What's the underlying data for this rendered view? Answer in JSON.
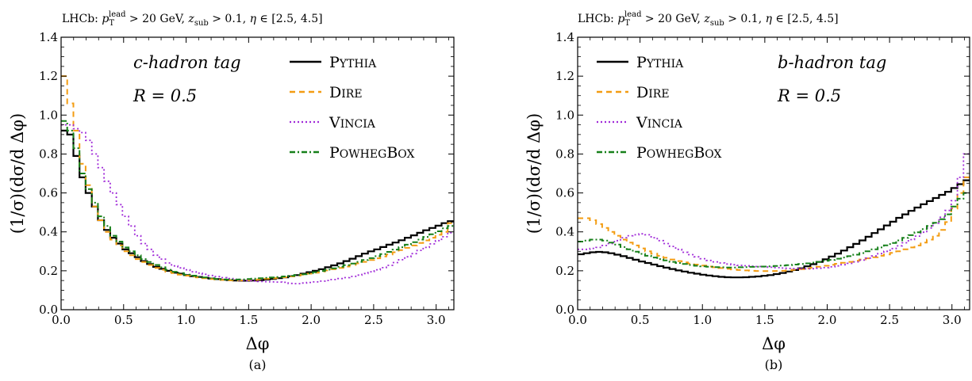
{
  "chart_data": [
    {
      "type": "line",
      "top_label": "LHCb: p_T^lead > 20 GeV, z_sub > 0.1, η ∈ [2.5, 4.5]",
      "tag_label": "c-hadron tag",
      "radius_label": "R = 0.5",
      "caption": "(a)",
      "xlabel": "Δφ",
      "ylabel": "(1/σ)(dσ/d Δφ)",
      "xlim": [
        0,
        3.1416
      ],
      "ylim": [
        0,
        1.4
      ],
      "xticks": [
        "0.0",
        "0.5",
        "1.0",
        "1.5",
        "2.0",
        "2.5",
        "3.0"
      ],
      "yticks": [
        "0.0",
        "0.2",
        "0.4",
        "0.6",
        "0.8",
        "1.0",
        "1.2",
        "1.4"
      ],
      "legend_position": "top-right",
      "series": [
        {
          "name": "Pythia",
          "color": "#000000",
          "dash": "",
          "width": 2.2,
          "values": [
            0.92,
            0.9,
            0.79,
            0.68,
            0.6,
            0.53,
            0.46,
            0.41,
            0.37,
            0.34,
            0.31,
            0.29,
            0.27,
            0.25,
            0.235,
            0.22,
            0.21,
            0.2,
            0.19,
            0.185,
            0.178,
            0.172,
            0.168,
            0.164,
            0.16,
            0.157,
            0.154,
            0.152,
            0.15,
            0.149,
            0.149,
            0.15,
            0.152,
            0.155,
            0.158,
            0.162,
            0.166,
            0.172,
            0.178,
            0.185,
            0.193,
            0.2,
            0.208,
            0.218,
            0.228,
            0.238,
            0.25,
            0.262,
            0.275,
            0.288,
            0.3,
            0.31,
            0.322,
            0.334,
            0.345,
            0.357,
            0.37,
            0.382,
            0.395,
            0.408,
            0.42,
            0.432,
            0.445,
            0.455
          ]
        },
        {
          "name": "Dire",
          "color": "#f39c12",
          "dash": "7,5",
          "width": 2,
          "values": [
            1.2,
            1.06,
            0.92,
            0.75,
            0.64,
            0.53,
            0.46,
            0.4,
            0.36,
            0.33,
            0.3,
            0.28,
            0.26,
            0.245,
            0.23,
            0.215,
            0.205,
            0.195,
            0.188,
            0.18,
            0.175,
            0.17,
            0.166,
            0.162,
            0.158,
            0.155,
            0.153,
            0.151,
            0.15,
            0.15,
            0.151,
            0.153,
            0.156,
            0.159,
            0.161,
            0.164,
            0.167,
            0.171,
            0.175,
            0.18,
            0.185,
            0.19,
            0.196,
            0.202,
            0.208,
            0.215,
            0.222,
            0.23,
            0.238,
            0.246,
            0.255,
            0.264,
            0.274,
            0.284,
            0.295,
            0.306,
            0.318,
            0.33,
            0.343,
            0.356,
            0.37,
            0.385,
            0.4,
            0.445
          ]
        },
        {
          "name": "Vincia",
          "color": "#a02bd8",
          "dash": "2,3",
          "width": 1.8,
          "values": [
            0.95,
            0.95,
            0.93,
            0.91,
            0.87,
            0.8,
            0.73,
            0.66,
            0.6,
            0.54,
            0.48,
            0.43,
            0.38,
            0.34,
            0.31,
            0.28,
            0.26,
            0.24,
            0.225,
            0.215,
            0.205,
            0.195,
            0.188,
            0.182,
            0.176,
            0.17,
            0.165,
            0.16,
            0.156,
            0.152,
            0.149,
            0.147,
            0.145,
            0.144,
            0.143,
            0.142,
            0.141,
            0.135,
            0.134,
            0.137,
            0.14,
            0.143,
            0.147,
            0.15,
            0.155,
            0.16,
            0.165,
            0.171,
            0.178,
            0.186,
            0.195,
            0.205,
            0.216,
            0.228,
            0.242,
            0.257,
            0.272,
            0.288,
            0.305,
            0.32,
            0.338,
            0.355,
            0.375,
            0.395
          ]
        },
        {
          "name": "PowhegBox",
          "color": "#17801a",
          "dash": "7,3,2,3",
          "width": 2,
          "values": [
            0.97,
            0.92,
            0.83,
            0.7,
            0.62,
            0.55,
            0.48,
            0.43,
            0.38,
            0.35,
            0.32,
            0.3,
            0.28,
            0.26,
            0.245,
            0.23,
            0.218,
            0.205,
            0.195,
            0.188,
            0.18,
            0.175,
            0.17,
            0.166,
            0.162,
            0.158,
            0.156,
            0.155,
            0.155,
            0.156,
            0.158,
            0.16,
            0.162,
            0.164,
            0.166,
            0.168,
            0.171,
            0.174,
            0.178,
            0.182,
            0.187,
            0.193,
            0.199,
            0.206,
            0.213,
            0.221,
            0.229,
            0.237,
            0.246,
            0.255,
            0.265,
            0.275,
            0.286,
            0.297,
            0.309,
            0.321,
            0.334,
            0.347,
            0.36,
            0.374,
            0.388,
            0.403,
            0.418,
            0.43
          ]
        }
      ]
    },
    {
      "type": "line",
      "top_label": "LHCb: p_T^lead > 20 GeV, z_sub > 0.1, η ∈ [2.5, 4.5]",
      "tag_label": "b-hadron tag",
      "radius_label": "R = 0.5",
      "caption": "(b)",
      "xlabel": "Δφ",
      "ylabel": "(1/σ)(dσ/d Δφ)",
      "xlim": [
        0,
        3.1416
      ],
      "ylim": [
        0,
        1.4
      ],
      "xticks": [
        "0.0",
        "0.5",
        "1.0",
        "1.5",
        "2.0",
        "2.5",
        "3.0"
      ],
      "yticks": [
        "0.0",
        "0.2",
        "0.4",
        "0.6",
        "0.8",
        "1.0",
        "1.2",
        "1.4"
      ],
      "legend_position": "top-left",
      "series": [
        {
          "name": "Pythia",
          "color": "#000000",
          "dash": "",
          "width": 2.2,
          "values": [
            0.285,
            0.29,
            0.295,
            0.297,
            0.295,
            0.29,
            0.283,
            0.275,
            0.266,
            0.257,
            0.248,
            0.24,
            0.232,
            0.224,
            0.216,
            0.209,
            0.202,
            0.196,
            0.19,
            0.185,
            0.18,
            0.176,
            0.172,
            0.169,
            0.167,
            0.166,
            0.166,
            0.167,
            0.169,
            0.171,
            0.174,
            0.178,
            0.183,
            0.189,
            0.196,
            0.204,
            0.213,
            0.223,
            0.234,
            0.246,
            0.259,
            0.273,
            0.288,
            0.304,
            0.321,
            0.338,
            0.356,
            0.375,
            0.394,
            0.413,
            0.433,
            0.452,
            0.472,
            0.49,
            0.508,
            0.525,
            0.542,
            0.558,
            0.574,
            0.59,
            0.606,
            0.625,
            0.645,
            0.665
          ]
        },
        {
          "name": "Dire",
          "color": "#f39c12",
          "dash": "7,5",
          "width": 2,
          "values": [
            0.47,
            0.47,
            0.46,
            0.44,
            0.42,
            0.4,
            0.38,
            0.36,
            0.345,
            0.33,
            0.315,
            0.3,
            0.288,
            0.277,
            0.267,
            0.258,
            0.25,
            0.243,
            0.237,
            0.232,
            0.227,
            0.222,
            0.218,
            0.214,
            0.21,
            0.207,
            0.204,
            0.202,
            0.2,
            0.199,
            0.198,
            0.198,
            0.199,
            0.2,
            0.202,
            0.205,
            0.208,
            0.212,
            0.216,
            0.221,
            0.226,
            0.231,
            0.236,
            0.241,
            0.246,
            0.252,
            0.258,
            0.264,
            0.27,
            0.277,
            0.284,
            0.292,
            0.3,
            0.31,
            0.32,
            0.33,
            0.345,
            0.36,
            0.38,
            0.41,
            0.45,
            0.52,
            0.6,
            0.68
          ]
        },
        {
          "name": "Vincia",
          "color": "#a02bd8",
          "dash": "2,3",
          "width": 1.8,
          "values": [
            0.31,
            0.31,
            0.315,
            0.32,
            0.33,
            0.34,
            0.355,
            0.37,
            0.38,
            0.385,
            0.39,
            0.385,
            0.37,
            0.355,
            0.34,
            0.325,
            0.31,
            0.295,
            0.283,
            0.272,
            0.262,
            0.253,
            0.246,
            0.24,
            0.235,
            0.231,
            0.228,
            0.226,
            0.224,
            0.222,
            0.22,
            0.218,
            0.216,
            0.214,
            0.212,
            0.211,
            0.21,
            0.21,
            0.211,
            0.213,
            0.216,
            0.22,
            0.225,
            0.231,
            0.238,
            0.246,
            0.255,
            0.265,
            0.276,
            0.288,
            0.3,
            0.314,
            0.328,
            0.344,
            0.36,
            0.378,
            0.398,
            0.42,
            0.445,
            0.475,
            0.51,
            0.56,
            0.68,
            0.8
          ]
        },
        {
          "name": "PowhegBox",
          "color": "#17801a",
          "dash": "7,3,2,3",
          "width": 2,
          "values": [
            0.35,
            0.355,
            0.36,
            0.36,
            0.355,
            0.345,
            0.335,
            0.322,
            0.31,
            0.298,
            0.287,
            0.277,
            0.268,
            0.26,
            0.253,
            0.246,
            0.24,
            0.235,
            0.23,
            0.226,
            0.223,
            0.221,
            0.219,
            0.218,
            0.217,
            0.217,
            0.218,
            0.219,
            0.22,
            0.221,
            0.222,
            0.223,
            0.225,
            0.227,
            0.229,
            0.232,
            0.235,
            0.238,
            0.242,
            0.246,
            0.251,
            0.256,
            0.262,
            0.268,
            0.275,
            0.283,
            0.291,
            0.3,
            0.31,
            0.32,
            0.331,
            0.343,
            0.356,
            0.369,
            0.383,
            0.398,
            0.414,
            0.43,
            0.447,
            0.465,
            0.49,
            0.53,
            0.57,
            0.6
          ]
        }
      ]
    }
  ]
}
